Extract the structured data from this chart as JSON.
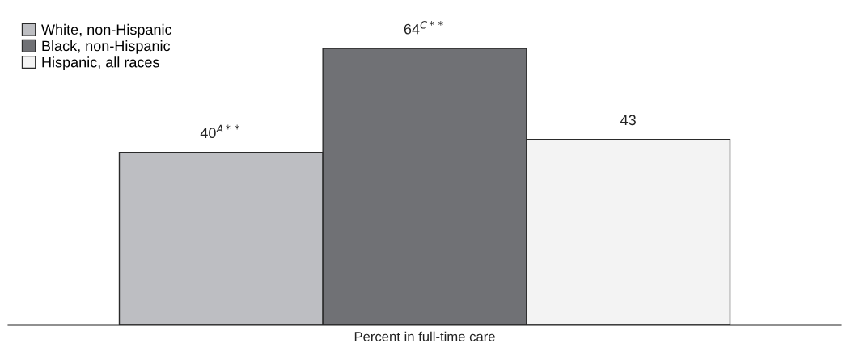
{
  "chart_data": {
    "type": "bar",
    "xlabel": "Percent in full-time care",
    "categories": [
      null
    ],
    "legend": "top left",
    "series": [
      {
        "name": "White, non-Hispanic",
        "color": "#bdbec2",
        "values": [
          40
        ],
        "value_labels": [
          "40$^{A**}$"
        ]
      },
      {
        "name": "Black, non-Hispanic",
        "color": "#707175",
        "values": [
          64
        ],
        "value_labels": [
          "64$^{C**}$"
        ]
      },
      {
        "name": "Hispanic, all races",
        "color": "#f3f3f3",
        "values": [
          43
        ],
        "value_labels": [
          "43"
        ]
      }
    ]
  }
}
